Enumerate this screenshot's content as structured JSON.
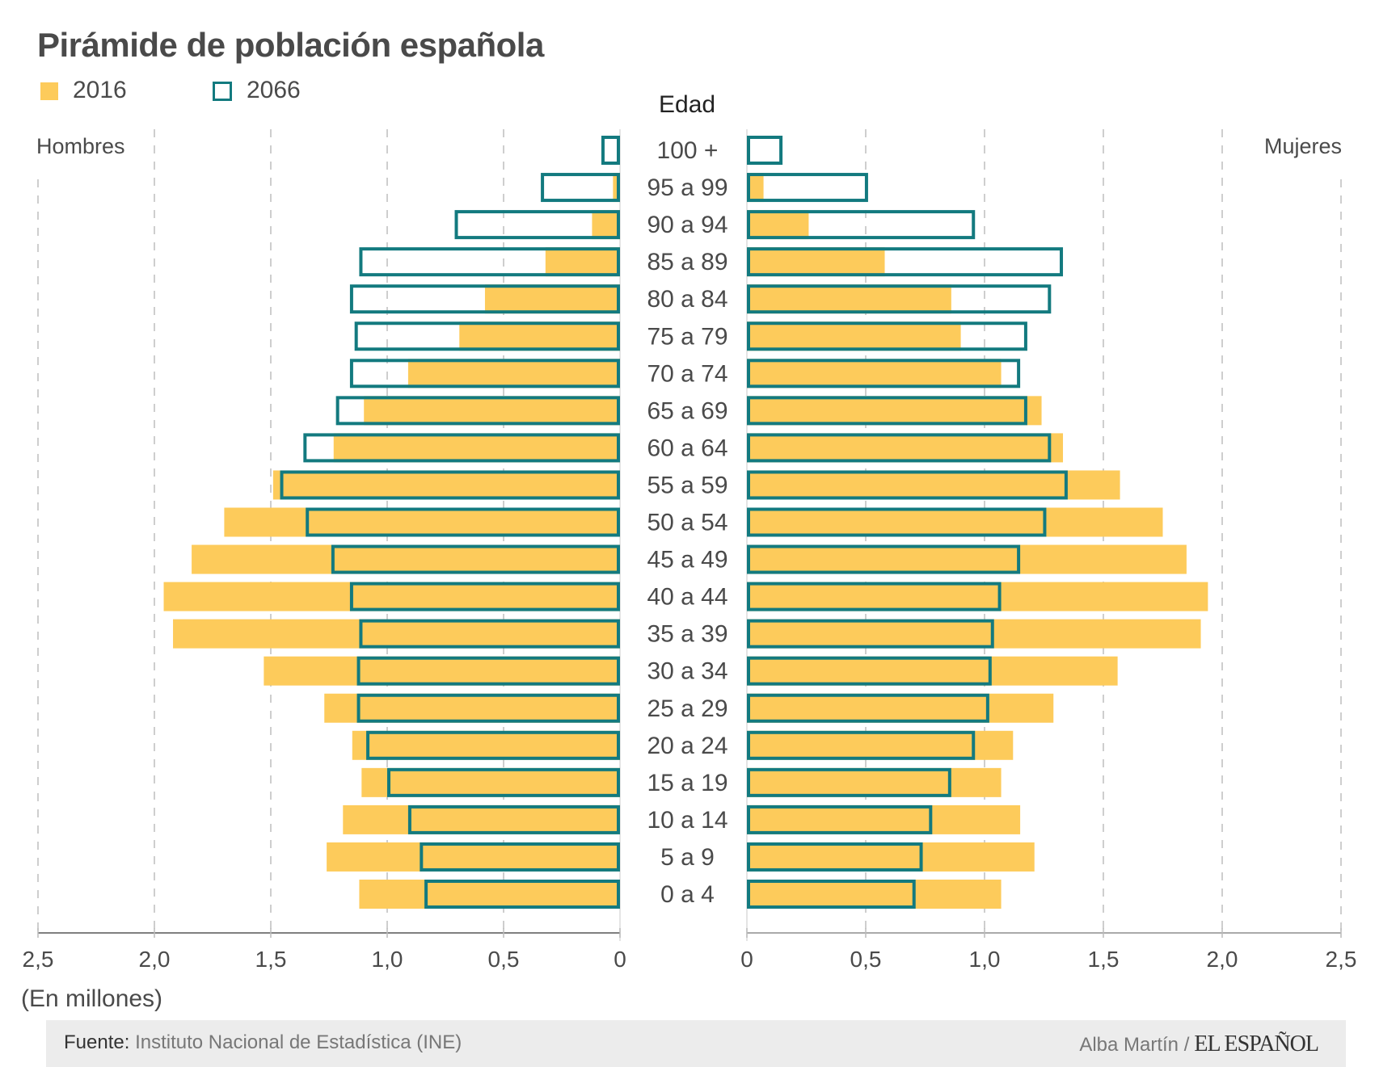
{
  "header": {
    "title": "Pirámide de población española"
  },
  "legend": [
    {
      "label": "2016",
      "style": "filled",
      "color": "#FDCB5B"
    },
    {
      "label": "2066",
      "style": "outline",
      "color": "#137A7F"
    }
  ],
  "labels": {
    "edad": "Edad",
    "left_side": "Hombres",
    "right_side": "Mujeres",
    "units": "(En millones)"
  },
  "footer": {
    "source_key": "Fuente:",
    "source_value": "Instituto Nacional de Estadística (INE)",
    "author": "Alba Martín /",
    "brand": "EL ESPAÑOL"
  },
  "chart_data": {
    "type": "bar",
    "subtype": "population-pyramid",
    "title": "Pirámide de población española",
    "xlabel": "(En millones)",
    "ylabel": "Edad",
    "xlim": [
      0,
      2.5
    ],
    "x_ticks_left": [
      "2,5",
      "2,0",
      "1,5",
      "1,0",
      "0,5",
      "0"
    ],
    "x_ticks_right": [
      "0",
      "0,5",
      "1,0",
      "1,5",
      "2,0",
      "2,5"
    ],
    "tick_values": [
      0,
      0.5,
      1.0,
      1.5,
      2.0,
      2.5
    ],
    "grid": true,
    "legend_position": "top-left",
    "categories": [
      "100 +",
      "95 a 99",
      "90 a 94",
      "85 a 89",
      "80 a 84",
      "75 a 79",
      "70 a 74",
      "65 a 69",
      "60 a 64",
      "55 a 59",
      "50 a 54",
      "45 a 49",
      "40 a 44",
      "35 a 39",
      "30 a 34",
      "25 a 29",
      "20 a 24",
      "15 a 19",
      "10 a 14",
      "5 a 9",
      "0 a 4"
    ],
    "series": [
      {
        "name": "Hombres 2016",
        "side": "left",
        "style": "filled",
        "color": "#FDCB5B",
        "values": [
          0.005,
          0.03,
          0.12,
          0.32,
          0.58,
          0.69,
          0.91,
          1.1,
          1.23,
          1.49,
          1.7,
          1.84,
          1.96,
          1.92,
          1.53,
          1.27,
          1.15,
          1.11,
          1.19,
          1.26,
          1.12
        ]
      },
      {
        "name": "Hombres 2066",
        "side": "left",
        "style": "outline",
        "color": "#137A7F",
        "values": [
          0.08,
          0.34,
          0.71,
          1.12,
          1.16,
          1.14,
          1.16,
          1.22,
          1.36,
          1.46,
          1.35,
          1.24,
          1.16,
          1.12,
          1.13,
          1.13,
          1.09,
          1.0,
          0.91,
          0.86,
          0.84
        ]
      },
      {
        "name": "Mujeres 2016",
        "side": "right",
        "style": "filled",
        "color": "#FDCB5B",
        "values": [
          0.005,
          0.07,
          0.26,
          0.58,
          0.86,
          0.9,
          1.07,
          1.24,
          1.33,
          1.57,
          1.75,
          1.85,
          1.94,
          1.91,
          1.56,
          1.29,
          1.12,
          1.07,
          1.15,
          1.21,
          1.07
        ]
      },
      {
        "name": "Mujeres 2066",
        "side": "right",
        "style": "outline",
        "color": "#137A7F",
        "values": [
          0.15,
          0.51,
          0.96,
          1.33,
          1.28,
          1.18,
          1.15,
          1.18,
          1.28,
          1.35,
          1.26,
          1.15,
          1.07,
          1.04,
          1.03,
          1.02,
          0.96,
          0.86,
          0.78,
          0.74,
          0.71
        ]
      }
    ]
  }
}
